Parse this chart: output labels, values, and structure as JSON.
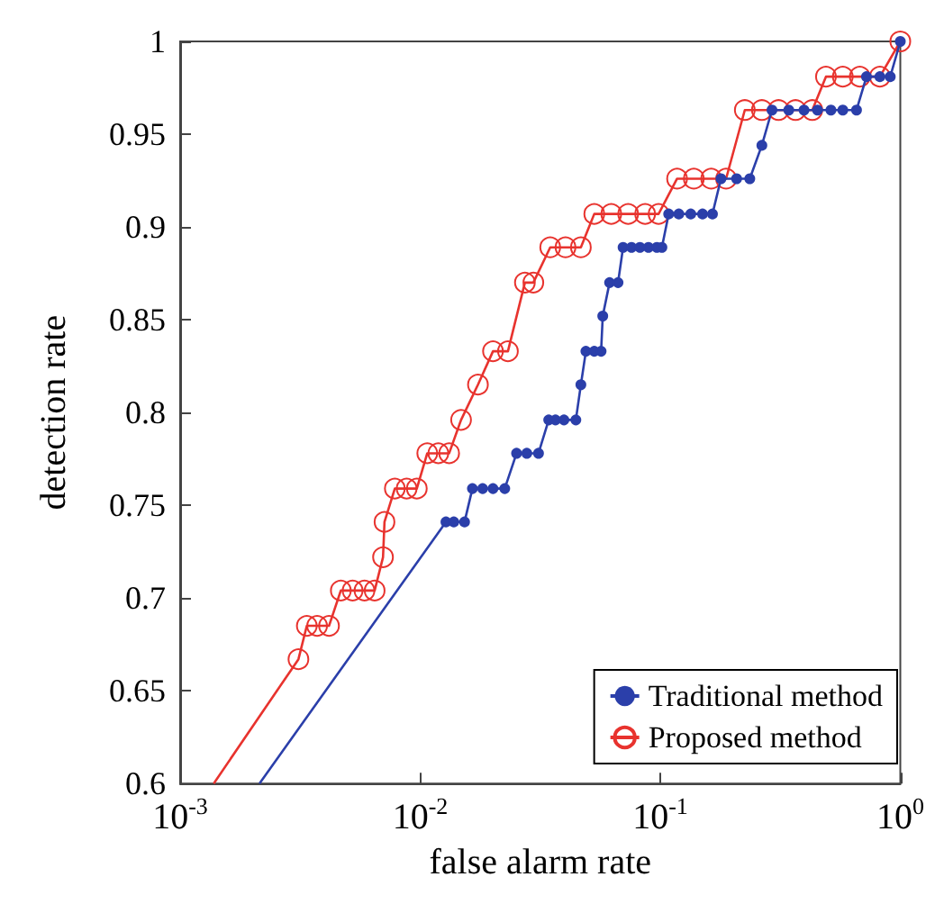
{
  "chart_data": {
    "type": "line",
    "xlabel": "false alarm rate",
    "ylabel": "detection rate",
    "log": "x",
    "xlim": [
      0.001,
      1
    ],
    "xticks": [
      {
        "value": 0.001,
        "label": "10$^{-3}$"
      },
      {
        "value": 0.01,
        "label": "10$^{-2}$"
      },
      {
        "value": 0.1,
        "label": "10$^{-1}$"
      },
      {
        "value": 1,
        "label": "10$^{0}$"
      }
    ],
    "ylim": [
      0.6,
      1
    ],
    "yticks": [
      0.6,
      0.65,
      0.7,
      0.75,
      0.8,
      0.85,
      0.9,
      0.95,
      1
    ],
    "grid": false,
    "legend": "bottom right",
    "marker": "circle",
    "line_style": "solid",
    "series": [
      {
        "name": "Traditional method",
        "color": "#2b3faa",
        "x": [
          0.00214,
          0.0128,
          0.0138,
          0.0153,
          0.0165,
          0.0182,
          0.0201,
          0.0225,
          0.0252,
          0.0278,
          0.0311,
          0.0343,
          0.0366,
          0.0397,
          0.0445,
          0.0467,
          0.049,
          0.0531,
          0.0567,
          0.0576,
          0.0615,
          0.0667,
          0.07,
          0.0759,
          0.0823,
          0.0893,
          0.0968,
          0.1016,
          0.1084,
          0.1195,
          0.134,
          0.15,
          0.165,
          0.179,
          0.208,
          0.236,
          0.265,
          0.292,
          0.343,
          0.397,
          0.452,
          0.514,
          0.576,
          0.657,
          0.723,
          0.822,
          0.908,
          1
        ],
        "values": [
          0.6,
          0.741,
          0.741,
          0.741,
          0.759,
          0.759,
          0.759,
          0.759,
          0.778,
          0.778,
          0.778,
          0.796,
          0.796,
          0.796,
          0.796,
          0.815,
          0.833,
          0.833,
          0.833,
          0.852,
          0.87,
          0.87,
          0.889,
          0.889,
          0.889,
          0.889,
          0.889,
          0.889,
          0.907,
          0.907,
          0.907,
          0.907,
          0.907,
          0.926,
          0.926,
          0.926,
          0.944,
          0.963,
          0.963,
          0.963,
          0.963,
          0.963,
          0.963,
          0.963,
          0.981,
          0.981,
          0.981,
          1
        ]
      },
      {
        "name": "Proposed method",
        "color": "#e8332e",
        "x": [
          0.00138,
          0.00311,
          0.00337,
          0.00372,
          0.00417,
          0.00467,
          0.00523,
          0.00586,
          0.00646,
          0.007,
          0.0071,
          0.00784,
          0.00878,
          0.00968,
          0.0107,
          0.0119,
          0.0132,
          0.0148,
          0.0174,
          0.0201,
          0.0232,
          0.0273,
          0.0296,
          0.0348,
          0.0403,
          0.0467,
          0.0531,
          0.0625,
          0.0735,
          0.0865,
          0.0984,
          0.1175,
          0.138,
          0.163,
          0.188,
          0.225,
          0.265,
          0.311,
          0.366,
          0.43,
          0.49,
          0.576,
          0.678,
          0.822,
          1
        ],
        "values": [
          0.6,
          0.667,
          0.685,
          0.685,
          0.685,
          0.704,
          0.704,
          0.704,
          0.704,
          0.722,
          0.741,
          0.759,
          0.759,
          0.759,
          0.778,
          0.778,
          0.778,
          0.796,
          0.815,
          0.833,
          0.833,
          0.87,
          0.87,
          0.889,
          0.889,
          0.889,
          0.907,
          0.907,
          0.907,
          0.907,
          0.907,
          0.926,
          0.926,
          0.926,
          0.926,
          0.963,
          0.963,
          0.963,
          0.963,
          0.963,
          0.981,
          0.981,
          0.981,
          0.981,
          1
        ]
      }
    ]
  }
}
